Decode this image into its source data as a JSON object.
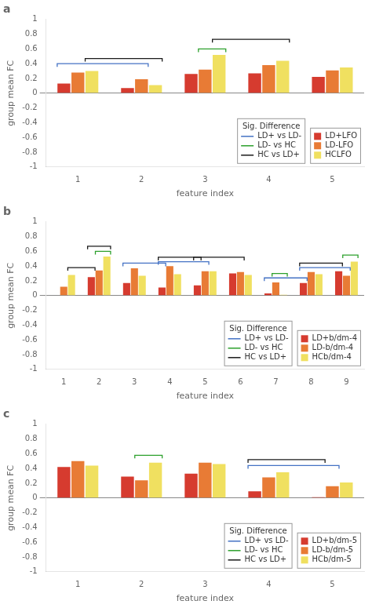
{
  "chart_data": [
    {
      "type": "bar",
      "title": "a",
      "categories": [
        1,
        2,
        3,
        4,
        5
      ],
      "series": [
        {
          "name": "LD+LFO",
          "color": "#D63B2F",
          "values": [
            0.13,
            0.07,
            0.26,
            0.27,
            0.22
          ]
        },
        {
          "name": "LD-LFO",
          "color": "#E87B35",
          "values": [
            0.28,
            0.19,
            0.32,
            0.38,
            0.31
          ]
        },
        {
          "name": "HCLFO",
          "color": "#F0E060",
          "values": [
            0.3,
            0.11,
            0.52,
            0.44,
            0.35
          ]
        }
      ],
      "xlabel": "feature index",
      "ylabel": "group mean FC",
      "ylim": [
        -1,
        1
      ],
      "yticks": [
        -1,
        -0.8,
        -0.6,
        -0.4,
        -0.2,
        0,
        0.2,
        0.4,
        0.6,
        0.8,
        1
      ],
      "grid": false,
      "legend": "lower right",
      "sig_legend": {
        "title": "Sig. Difference",
        "items": [
          {
            "name": "LD+ vs LD-",
            "color": "#4472C4"
          },
          {
            "name": "LD- vs HC",
            "color": "#2CA02C"
          },
          {
            "name": "HC vs LD+",
            "color": "#1A1A1A"
          }
        ]
      },
      "brackets": [
        {
          "comparison": "HC vs LD+",
          "from_category": 1,
          "from_series": "HCLFO",
          "to_category": 2,
          "to_series": "HCLFO",
          "y": 0.47
        },
        {
          "comparison": "LD+ vs LD-",
          "from_category": 1,
          "from_series": "LD+LFO",
          "to_category": 2,
          "to_series": "LD-LFO",
          "y": 0.4
        },
        {
          "comparison": "LD- vs HC",
          "from_category": 3,
          "from_series": "LD-LFO",
          "to_category": 3,
          "to_series": "HCLFO",
          "y": 0.6
        },
        {
          "comparison": "HC vs LD+",
          "from_category": 3,
          "from_series": "HCLFO",
          "to_category": 4,
          "to_series": "HCLFO",
          "y": 0.73
        }
      ]
    },
    {
      "type": "bar",
      "title": "b",
      "categories": [
        1,
        2,
        3,
        4,
        5,
        6,
        7,
        8,
        9
      ],
      "series": [
        {
          "name": "LD+b/dm-4",
          "color": "#D63B2F",
          "values": [
            null,
            0.25,
            0.17,
            0.11,
            0.14,
            0.3,
            0.03,
            0.17,
            0.33
          ]
        },
        {
          "name": "LD-b/dm-4",
          "color": "#E87B35",
          "values": [
            0.12,
            0.34,
            0.37,
            0.4,
            0.33,
            0.32,
            0.18,
            0.32,
            0.27
          ]
        },
        {
          "name": "HCb/dm-4",
          "color": "#F0E060",
          "values": [
            0.28,
            0.53,
            0.27,
            0.29,
            0.33,
            0.28,
            0.01,
            0.29,
            0.46
          ]
        }
      ],
      "xlabel": "feature index",
      "ylabel": "group mean FC",
      "ylim": [
        -1,
        1
      ],
      "yticks": [
        -1,
        -0.8,
        -0.6,
        -0.4,
        -0.2,
        0,
        0.2,
        0.4,
        0.6,
        0.8,
        1
      ],
      "grid": false,
      "legend": "lower right",
      "sig_legend": {
        "title": "Sig. Difference",
        "items": [
          {
            "name": "LD+ vs LD-",
            "color": "#4472C4"
          },
          {
            "name": "LD- vs HC",
            "color": "#2CA02C"
          },
          {
            "name": "HC vs LD+",
            "color": "#1A1A1A"
          }
        ]
      },
      "brackets": [
        {
          "comparison": "HC vs LD+",
          "from_category": 1,
          "from_series": "HCb/dm-4",
          "to_category": 2,
          "to_series": "LD+b/dm-4",
          "y": 0.38
        },
        {
          "comparison": "HC vs LD+",
          "from_category": 2,
          "from_series": "LD+b/dm-4",
          "to_category": 2,
          "to_series": "HCb/dm-4",
          "y": 0.67
        },
        {
          "comparison": "LD- vs HC",
          "from_category": 2,
          "from_series": "LD-b/dm-4",
          "to_category": 2,
          "to_series": "HCb/dm-4",
          "y": 0.6
        },
        {
          "comparison": "LD+ vs LD-",
          "from_category": 3,
          "from_series": "LD+b/dm-4",
          "to_category": 4,
          "to_series": "LD+b/dm-4",
          "y": 0.44
        },
        {
          "comparison": "HC vs LD+",
          "from_category": 4,
          "from_series": "LD+b/dm-4",
          "to_category": 5,
          "to_series": "LD+b/dm-4",
          "y": 0.52
        },
        {
          "comparison": "LD+ vs LD-",
          "from_category": 4,
          "from_series": "LD+b/dm-4",
          "to_category": 5,
          "to_series": "LD-b/dm-4",
          "y": 0.46
        },
        {
          "comparison": "HC vs LD+",
          "from_category": 5,
          "from_series": "LD+b/dm-4",
          "to_category": 6,
          "to_series": "LD-b/dm-4",
          "y": 0.52
        },
        {
          "comparison": "LD- vs HC",
          "from_category": 7,
          "from_series": "LD-b/dm-4",
          "to_category": 7,
          "to_series": "HCb/dm-4",
          "y": 0.3
        },
        {
          "comparison": "LD+ vs LD-",
          "from_category": 7,
          "from_series": "LD+b/dm-4",
          "to_category": 8,
          "to_series": "LD+b/dm-4",
          "y": 0.24
        },
        {
          "comparison": "HC vs LD+",
          "from_category": 8,
          "from_series": "LD+b/dm-4",
          "to_category": 9,
          "to_series": "LD+b/dm-4",
          "y": 0.44
        },
        {
          "comparison": "LD+ vs LD-",
          "from_category": 8,
          "from_series": "LD+b/dm-4",
          "to_category": 9,
          "to_series": "LD-b/dm-4",
          "y": 0.38
        },
        {
          "comparison": "LD- vs HC",
          "from_category": 9,
          "from_series": "LD-b/dm-4",
          "to_category": 9,
          "to_series": "HCb/dm-4",
          "y": 0.55
        }
      ]
    },
    {
      "type": "bar",
      "title": "c",
      "categories": [
        1,
        2,
        3,
        4,
        5
      ],
      "series": [
        {
          "name": "LD+b/dm-5",
          "color": "#D63B2F",
          "values": [
            0.42,
            0.29,
            0.33,
            0.09,
            0.01
          ]
        },
        {
          "name": "LD-b/dm-5",
          "color": "#E87B35",
          "values": [
            0.5,
            0.24,
            0.48,
            0.28,
            0.16
          ]
        },
        {
          "name": "HCb/dm-5",
          "color": "#F0E060",
          "values": [
            0.44,
            0.48,
            0.46,
            0.35,
            0.21
          ]
        }
      ],
      "xlabel": "feature index",
      "ylabel": "group mean FC",
      "ylim": [
        -1,
        1
      ],
      "yticks": [
        -1,
        -0.8,
        -0.6,
        -0.4,
        -0.2,
        0,
        0.2,
        0.4,
        0.6,
        0.8,
        1
      ],
      "grid": false,
      "legend": "lower right",
      "sig_legend": {
        "title": "Sig. Difference",
        "items": [
          {
            "name": "LD+ vs LD-",
            "color": "#4472C4"
          },
          {
            "name": "LD- vs HC",
            "color": "#2CA02C"
          },
          {
            "name": "HC vs LD+",
            "color": "#1A1A1A"
          }
        ]
      },
      "brackets": [
        {
          "comparison": "LD- vs HC",
          "from_category": 2,
          "from_series": "LD-b/dm-5",
          "to_category": 2,
          "to_series": "HCb/dm-5",
          "y": 0.58
        },
        {
          "comparison": "HC vs LD+",
          "from_category": 4,
          "from_series": "LD+b/dm-5",
          "to_category": 5,
          "to_series": "LD+b/dm-5",
          "y": 0.52
        },
        {
          "comparison": "LD+ vs LD-",
          "from_category": 4,
          "from_series": "LD+b/dm-5",
          "to_category": 5,
          "to_series": "LD-b/dm-5",
          "y": 0.44
        }
      ]
    }
  ]
}
